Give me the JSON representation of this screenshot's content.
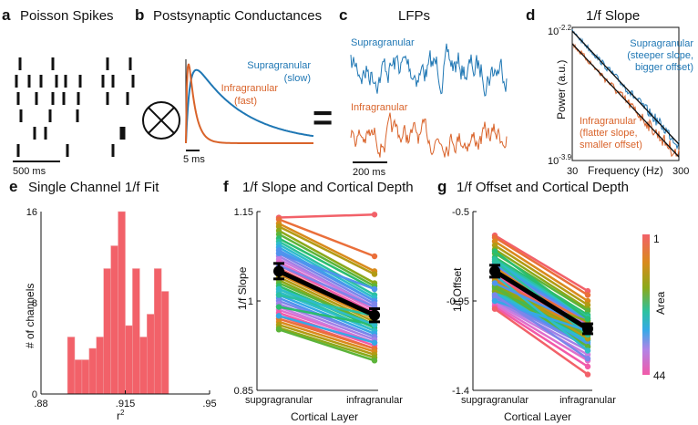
{
  "colors": {
    "supra": "#1f77b4",
    "infra": "#d9632a",
    "bar": "#f26169",
    "ink": "#111111"
  },
  "panels": {
    "a": {
      "letter": "a",
      "title": "Poisson Spikes",
      "scale": "500 ms"
    },
    "b": {
      "letter": "b",
      "title": "Postsynaptic Conductances",
      "supra_label": "Supragranular",
      "supra_sub": "(slow)",
      "infra_label": "Infragranular",
      "infra_sub": "(fast)",
      "scale": "5 ms",
      "equals": "="
    },
    "c": {
      "letter": "c",
      "title": "LFPs",
      "supra_label": "Supragranular",
      "infra_label": "Infragranular",
      "scale": "200 ms"
    },
    "d": {
      "letter": "d",
      "title": "1/f Slope",
      "ylabel": "Power (a.u.)",
      "xlabel": "Frequency (Hz)",
      "ytick_top": "10",
      "ytick_top_exp": "-2.2",
      "ytick_bot": "10",
      "ytick_bot_exp": "-3.9",
      "xtick_left": "30",
      "xtick_right": "300",
      "supra_l1": "Supragranular",
      "supra_l2": "(steeper slope,",
      "supra_l3": "bigger offset)",
      "infra_l1": "Infragranular",
      "infra_l2": "(flatter slope,",
      "infra_l3": "smaller offset)"
    },
    "e": {
      "letter": "e",
      "title": "Single Channel 1/f Fit",
      "ylabel": "# of channels",
      "xlabel": "r",
      "xlabel_sup": "2"
    },
    "f": {
      "letter": "f",
      "title": "1/f Slope and Cortical Depth",
      "ylabel": "1/f Slope",
      "xlabel": "Cortical Layer"
    },
    "g": {
      "letter": "g",
      "title": "1/f Offset and Cortical Depth",
      "ylabel": "1/f Offset",
      "xlabel": "Cortical Layer"
    },
    "colorbar": {
      "label": "Area",
      "top": "1",
      "bottom": "44"
    }
  },
  "chart_data": [
    {
      "type": "bar",
      "panel": "e",
      "title": "Single Channel 1/f Fit",
      "xlabel": "r2",
      "ylabel": "# of channels",
      "bin_edges": [
        0.891,
        0.894,
        0.897,
        0.9,
        0.903,
        0.906,
        0.909,
        0.912,
        0.915,
        0.918,
        0.921,
        0.924,
        0.927,
        0.93,
        0.933,
        0.936
      ],
      "values": [
        5,
        3,
        3,
        4,
        5,
        11,
        13,
        16,
        6,
        11,
        5,
        7,
        11,
        9,
        0
      ],
      "xlim": [
        0.88,
        0.95
      ],
      "ylim": [
        0,
        16
      ],
      "xticks": [
        ".88",
        ".915",
        ".95"
      ],
      "yticks": [
        "0",
        "8",
        "16"
      ]
    },
    {
      "type": "line",
      "panel": "f",
      "title": "1/f Slope and Cortical Depth",
      "xlabel": "Cortical Layer",
      "ylabel": "1/f Slope",
      "categories": [
        "supgragranular",
        "infragranular"
      ],
      "ylim": [
        0.85,
        1.15
      ],
      "yticks": [
        "0.85",
        "1",
        "1.15"
      ],
      "mean": {
        "values": [
          1.05,
          0.976
        ],
        "err": [
          0.013,
          0.011
        ]
      },
      "series": [
        [
          1.14,
          1.145
        ],
        [
          1.137,
          1.075
        ],
        [
          1.13,
          1.05
        ],
        [
          1.125,
          1.045
        ],
        [
          1.118,
          1.03
        ],
        [
          1.112,
          1.025
        ],
        [
          1.105,
          1.02
        ],
        [
          1.1,
          1.01
        ],
        [
          1.095,
          1.005
        ],
        [
          1.09,
          1.0
        ],
        [
          1.085,
          1.0
        ],
        [
          1.08,
          0.995
        ],
        [
          1.075,
          0.99
        ],
        [
          1.07,
          0.99
        ],
        [
          1.065,
          0.985
        ],
        [
          1.06,
          0.98
        ],
        [
          1.055,
          0.975
        ],
        [
          1.05,
          0.97
        ],
        [
          1.045,
          0.97
        ],
        [
          1.04,
          0.965
        ],
        [
          1.035,
          0.96
        ],
        [
          1.03,
          0.96
        ],
        [
          1.025,
          0.955
        ],
        [
          1.02,
          0.95
        ],
        [
          1.015,
          0.95
        ],
        [
          1.01,
          0.945
        ],
        [
          1.005,
          0.94
        ],
        [
          1.0,
          0.94
        ],
        [
          0.995,
          0.935
        ],
        [
          0.99,
          0.93
        ],
        [
          0.985,
          0.93
        ],
        [
          0.98,
          0.925
        ],
        [
          0.975,
          0.92
        ],
        [
          0.97,
          0.92
        ],
        [
          0.965,
          0.915
        ],
        [
          0.96,
          0.91
        ],
        [
          0.955,
          0.905
        ],
        [
          0.952,
          0.9
        ],
        [
          0.99,
          0.96
        ],
        [
          1.01,
          0.975
        ],
        [
          1.02,
          0.96
        ],
        [
          0.975,
          0.93
        ],
        [
          1.08,
          1.02
        ],
        [
          1.06,
          0.99
        ]
      ]
    },
    {
      "type": "line",
      "panel": "g",
      "title": "1/f Offset and Cortical Depth",
      "xlabel": "Cortical Layer",
      "ylabel": "1/f Offset",
      "categories": [
        "supgragranular",
        "infragranular"
      ],
      "ylim": [
        -1.4,
        -0.5
      ],
      "yticks": [
        "-1.4",
        "-0.95",
        "-0.5"
      ],
      "mean": {
        "values": [
          -0.8,
          -1.09
        ],
        "err": [
          0.03,
          0.025
        ]
      },
      "series": [
        [
          -0.62,
          -0.9
        ],
        [
          -0.63,
          -0.92
        ],
        [
          -0.65,
          -0.95
        ],
        [
          -0.67,
          -0.97
        ],
        [
          -0.69,
          -0.99
        ],
        [
          -0.71,
          -1.0
        ],
        [
          -0.73,
          -1.02
        ],
        [
          -0.74,
          -1.03
        ],
        [
          -0.75,
          -1.04
        ],
        [
          -0.76,
          -1.05
        ],
        [
          -0.77,
          -1.05
        ],
        [
          -0.78,
          -1.06
        ],
        [
          -0.79,
          -1.07
        ],
        [
          -0.8,
          -1.08
        ],
        [
          -0.81,
          -1.08
        ],
        [
          -0.82,
          -1.09
        ],
        [
          -0.83,
          -1.1
        ],
        [
          -0.84,
          -1.1
        ],
        [
          -0.85,
          -1.11
        ],
        [
          -0.86,
          -1.12
        ],
        [
          -0.87,
          -1.12
        ],
        [
          -0.88,
          -1.13
        ],
        [
          -0.89,
          -1.14
        ],
        [
          -0.9,
          -1.15
        ],
        [
          -0.91,
          -1.15
        ],
        [
          -0.92,
          -1.16
        ],
        [
          -0.93,
          -1.17
        ],
        [
          -0.94,
          -1.18
        ],
        [
          -0.95,
          -1.2
        ],
        [
          -0.96,
          -1.22
        ],
        [
          -0.97,
          -1.25
        ],
        [
          -0.98,
          -1.28
        ],
        [
          -0.99,
          -1.32
        ],
        [
          -0.8,
          -1.06
        ],
        [
          -0.78,
          -1.1
        ],
        [
          -0.85,
          -1.14
        ],
        [
          -0.9,
          -1.05
        ],
        [
          -0.88,
          -1.18
        ],
        [
          -0.7,
          -1.04
        ],
        [
          -0.75,
          -1.12
        ],
        [
          -0.82,
          -1.2
        ],
        [
          -0.95,
          -1.1
        ],
        [
          -0.86,
          -1.08
        ],
        [
          -0.92,
          -1.24
        ]
      ]
    }
  ]
}
